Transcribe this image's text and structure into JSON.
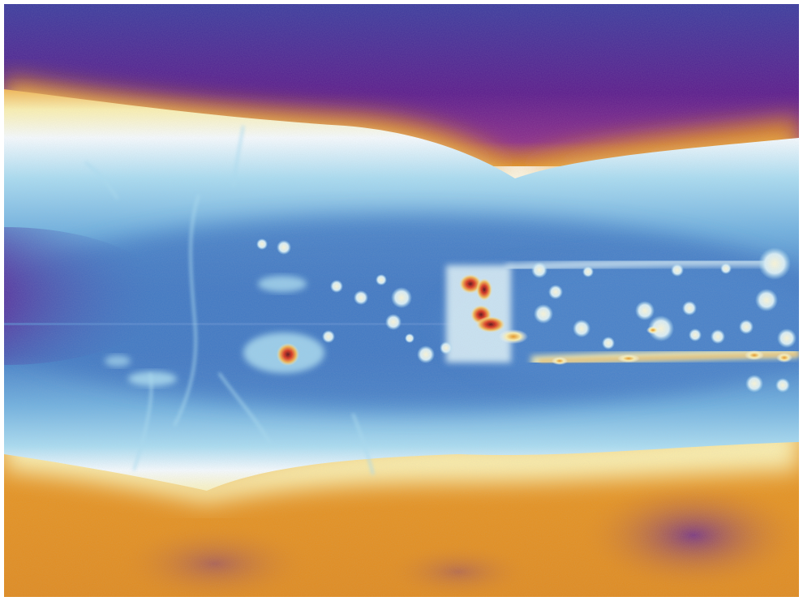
{
  "image": {
    "kind": "false-color-thermal-micrograph",
    "palette": {
      "deep": "#3a0a7a",
      "purple": "#5a1a8c",
      "magenta": "#8a2a8a",
      "orange": "#e08a1e",
      "light_orange": "#f2b552",
      "pale_yellow": "#fbf0b0",
      "white": "#f6fbff",
      "sky": "#a9dcf2",
      "light_blue": "#6fb0e0",
      "blue": "#3f78c4",
      "dark_blue": "#2d5eb0",
      "hot_red": "#d8331e",
      "hot_dark": "#5a0f16"
    }
  }
}
